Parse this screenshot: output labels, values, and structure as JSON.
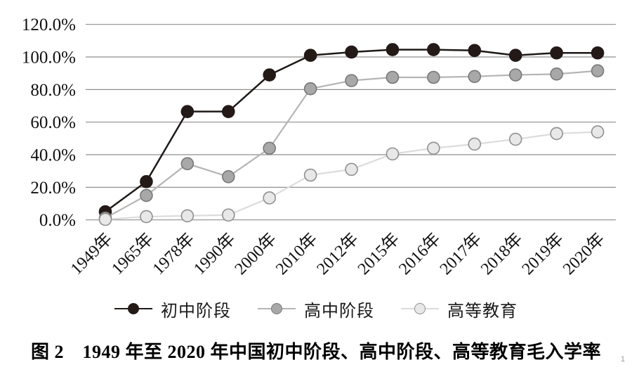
{
  "figure": {
    "caption": "图 2　1949 年至 2020 年中国初中阶段、高中阶段、高等教育毛入学率",
    "page_marker": "1"
  },
  "chart_data": {
    "type": "line",
    "title": "",
    "xlabel": "",
    "ylabel": "",
    "categories": [
      "1949年",
      "1965年",
      "1978年",
      "1990年",
      "2000年",
      "2010年",
      "2012年",
      "2015年",
      "2016年",
      "2017年",
      "2018年",
      "2019年",
      "2020年"
    ],
    "series": [
      {
        "name": "初中阶段",
        "values": [
          5.0,
          23.5,
          66.5,
          66.5,
          89.0,
          101.0,
          103.0,
          104.5,
          104.5,
          104.0,
          101.0,
          102.5,
          102.5
        ],
        "line_color": "#1f1a17",
        "line_width": 2.5,
        "marker_fill": "#231916",
        "marker_stroke": "#231916"
      },
      {
        "name": "高中阶段",
        "values": [
          1.1,
          15.0,
          34.5,
          26.5,
          44.0,
          80.5,
          85.5,
          87.5,
          87.5,
          88.0,
          89.0,
          89.5,
          91.5
        ],
        "line_color": "#b5b5b5",
        "line_width": 2.2,
        "marker_fill": "#a8a8a8",
        "marker_stroke": "#787878"
      },
      {
        "name": "高等教育",
        "values": [
          0.3,
          2.0,
          2.5,
          3.0,
          13.5,
          27.5,
          31.0,
          40.5,
          44.0,
          46.5,
          49.5,
          53.0,
          54.0
        ],
        "line_color": "#dcdcdc",
        "line_width": 2.2,
        "marker_fill": "#e8e8e8",
        "marker_stroke": "#909090"
      }
    ],
    "yticks": [
      {
        "label": "0.0%",
        "value": 0
      },
      {
        "label": "20.0%",
        "value": 20
      },
      {
        "label": "40.0%",
        "value": 40
      },
      {
        "label": "60.0%",
        "value": 60
      },
      {
        "label": "80.0%",
        "value": 80
      },
      {
        "label": "100.0%",
        "value": 100
      },
      {
        "label": "120.0%",
        "value": 120
      }
    ],
    "ylim": [
      0,
      120
    ],
    "grid": true,
    "grid_color": "#8f8f8f",
    "legend_position": "bottom"
  }
}
